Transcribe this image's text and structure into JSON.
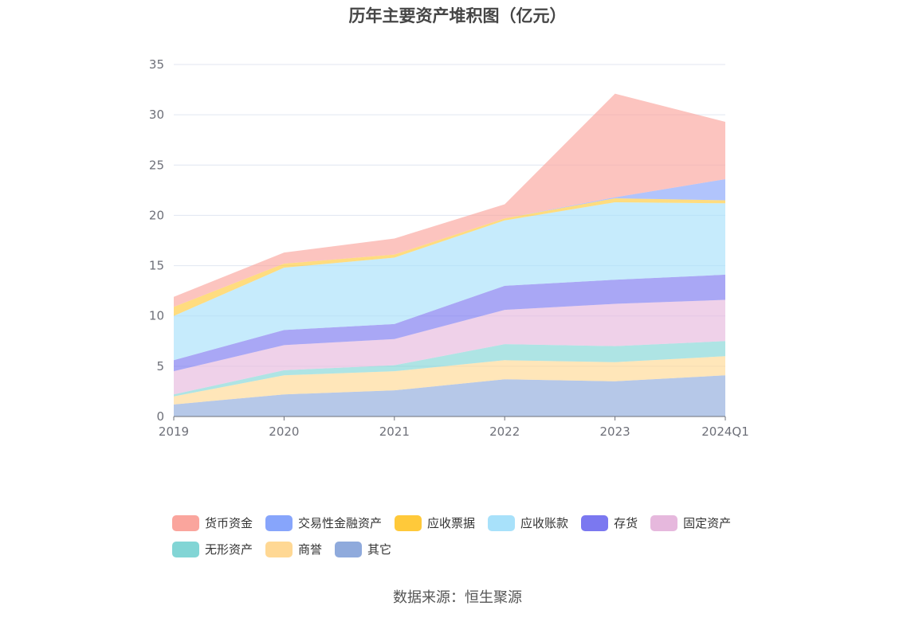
{
  "chart_data": {
    "type": "area",
    "stacked": true,
    "title": "历年主要资产堆积图（亿元）",
    "categories": [
      "2019",
      "2020",
      "2021",
      "2022",
      "2023",
      "2024Q1"
    ],
    "ylim": [
      0,
      35
    ],
    "yticks": [
      0,
      5,
      10,
      15,
      20,
      25,
      30,
      35
    ],
    "grid": true,
    "legend_position": "bottom",
    "series": [
      {
        "name": "其它",
        "color": "#8FAADC",
        "values": [
          1.2,
          2.2,
          2.6,
          3.7,
          3.5,
          4.1
        ]
      },
      {
        "name": "商誉",
        "color": "#FFD894",
        "values": [
          0.8,
          1.9,
          1.9,
          1.9,
          1.9,
          1.9
        ]
      },
      {
        "name": "无形资产",
        "color": "#82D5D5",
        "values": [
          0.2,
          0.5,
          0.6,
          1.6,
          1.6,
          1.5
        ]
      },
      {
        "name": "固定资产",
        "color": "#E6B8DD",
        "values": [
          2.3,
          2.5,
          2.6,
          3.4,
          4.2,
          4.1
        ]
      },
      {
        "name": "存货",
        "color": "#7B78F0",
        "values": [
          1.1,
          1.5,
          1.5,
          2.4,
          2.4,
          2.5
        ]
      },
      {
        "name": "应收账款",
        "color": "#A8E1FA",
        "values": [
          4.4,
          6.2,
          6.6,
          6.5,
          7.7,
          7.1
        ]
      },
      {
        "name": "应收票据",
        "color": "#FFC93A",
        "values": [
          0.9,
          0.4,
          0.3,
          0.2,
          0.4,
          0.3
        ]
      },
      {
        "name": "交易性金融资产",
        "color": "#87A5FB",
        "values": [
          0.0,
          0.0,
          0.0,
          0.0,
          0.1,
          2.1
        ]
      },
      {
        "name": "货币资金",
        "color": "#FAA59D",
        "values": [
          1.0,
          1.1,
          1.6,
          1.4,
          10.3,
          5.7
        ]
      }
    ],
    "legend_order": [
      "货币资金",
      "交易性金融资产",
      "应收票据",
      "应收账款",
      "存货",
      "固定资产",
      "无形资产",
      "商誉",
      "其它"
    ]
  },
  "source": "数据来源：恒生聚源"
}
